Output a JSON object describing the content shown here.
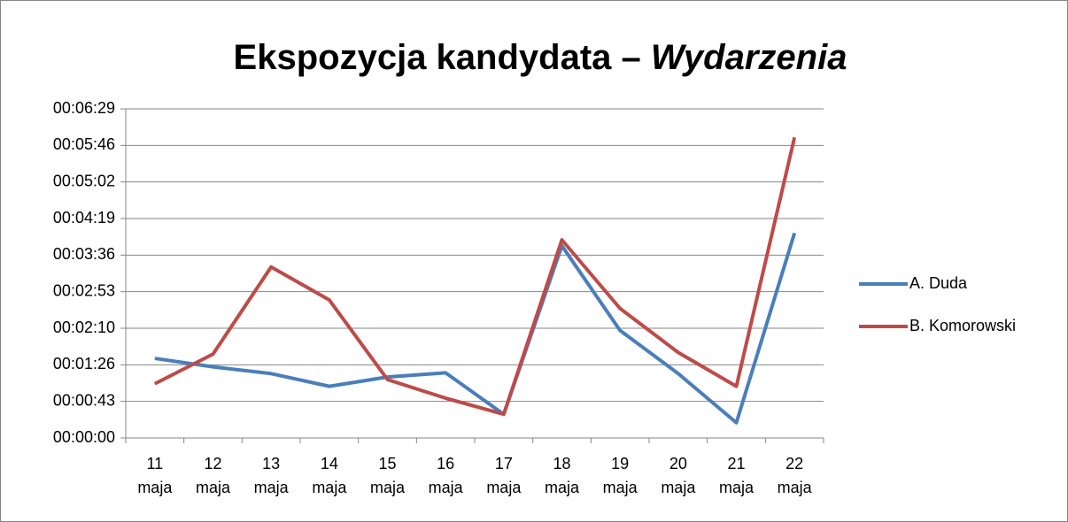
{
  "chart_data": {
    "type": "line",
    "title": "Ekspozycja kandydata –",
    "title_emphasis": "Wydarzenia",
    "categories": [
      "11 maja",
      "12 maja",
      "13 maja",
      "14 maja",
      "15 maja",
      "16 maja",
      "17 maja",
      "18 maja",
      "19 maja",
      "20 maja",
      "21 maja",
      "22 maja"
    ],
    "series": [
      {
        "name": "A. Duda",
        "color": "#4a7ebb",
        "values": [
          94,
          84,
          76,
          61,
          72,
          77,
          28,
          227,
          127,
          76,
          18,
          242
        ]
      },
      {
        "name": "B. Komorowski",
        "color": "#be4b48",
        "values": [
          64,
          99,
          202,
          163,
          69,
          47,
          28,
          234,
          153,
          101,
          61,
          355
        ]
      }
    ],
    "ylim": [
      0,
      388.8
    ],
    "yticks": [
      {
        "value": 0,
        "label": "00:00:00"
      },
      {
        "value": 43.2,
        "label": "00:00:43"
      },
      {
        "value": 86.4,
        "label": "00:01:26"
      },
      {
        "value": 129.6,
        "label": "00:02:10"
      },
      {
        "value": 172.8,
        "label": "00:02:53"
      },
      {
        "value": 216,
        "label": "00:03:36"
      },
      {
        "value": 259.2,
        "label": "00:04:19"
      },
      {
        "value": 302.4,
        "label": "00:05:02"
      },
      {
        "value": 345.6,
        "label": "00:05:46"
      },
      {
        "value": 388.8,
        "label": "00:06:29"
      }
    ],
    "grid": true,
    "legend": "right"
  }
}
